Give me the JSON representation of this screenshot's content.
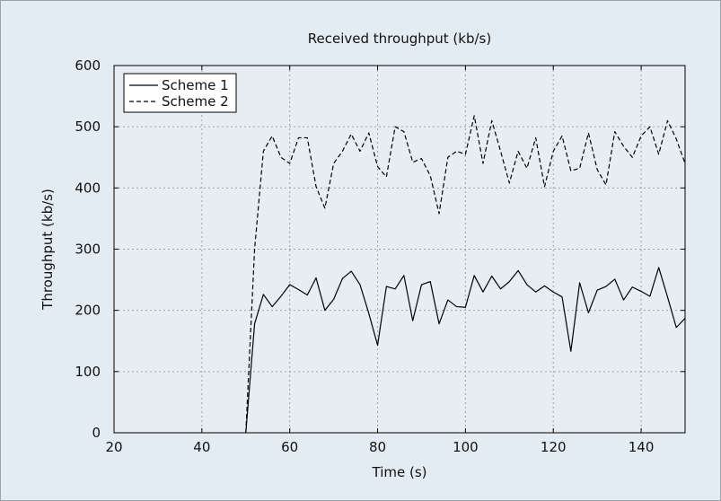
{
  "chart_data": {
    "type": "line",
    "title": "Received throughput (kb/s)",
    "xlabel": "Time (s)",
    "ylabel": "Throughput (kb/s)",
    "xlim": [
      20,
      150
    ],
    "ylim": [
      0,
      600
    ],
    "xticks": [
      20,
      40,
      60,
      80,
      100,
      120,
      140
    ],
    "yticks": [
      0,
      100,
      200,
      300,
      400,
      500,
      600
    ],
    "grid": true,
    "legend_position": "top-left",
    "colors": {
      "background": "#e3ecf2",
      "plot_area": "#e6eef3",
      "line": "#000000",
      "grid": "#9aa3aa"
    },
    "x": [
      50,
      52,
      54,
      56,
      58,
      60,
      62,
      64,
      66,
      68,
      70,
      72,
      74,
      76,
      78,
      80,
      82,
      84,
      86,
      88,
      90,
      92,
      94,
      96,
      98,
      100,
      102,
      104,
      106,
      108,
      110,
      112,
      114,
      116,
      118,
      120,
      122,
      124,
      126,
      128,
      130,
      132,
      134,
      136,
      138,
      140,
      142,
      144,
      146,
      148,
      150
    ],
    "series": [
      {
        "name": "Scheme 1",
        "style": "solid",
        "values": [
          0,
          178,
          226,
          206,
          223,
          242,
          234,
          225,
          253,
          200,
          218,
          252,
          264,
          242,
          195,
          143,
          239,
          235,
          257,
          183,
          242,
          247,
          178,
          217,
          206,
          205,
          257,
          230,
          256,
          235,
          247,
          265,
          242,
          230,
          240,
          230,
          222,
          133,
          245,
          196,
          233,
          239,
          251,
          217,
          238,
          231,
          223,
          270,
          222,
          172,
          187
        ]
      },
      {
        "name": "Scheme 2",
        "style": "dashed",
        "values": [
          0,
          300,
          460,
          485,
          450,
          440,
          482,
          482,
          402,
          367,
          440,
          460,
          488,
          460,
          490,
          435,
          418,
          500,
          492,
          442,
          448,
          420,
          358,
          450,
          460,
          455,
          518,
          440,
          510,
          460,
          408,
          460,
          432,
          482,
          402,
          460,
          485,
          428,
          432,
          490,
          430,
          405,
          492,
          468,
          450,
          485,
          500,
          455,
          510,
          480,
          440
        ]
      }
    ]
  }
}
